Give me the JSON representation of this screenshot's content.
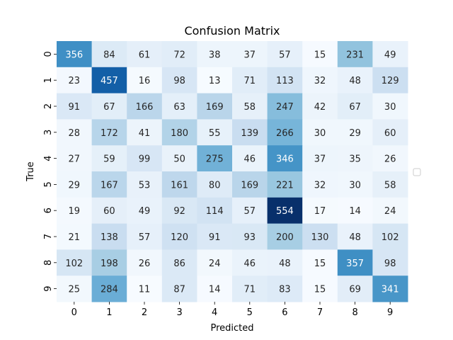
{
  "chart_data": {
    "type": "heatmap",
    "title": "Confusion Matrix",
    "xlabel": "Predicted",
    "ylabel": "True",
    "x_categories": [
      "0",
      "1",
      "2",
      "3",
      "4",
      "5",
      "6",
      "7",
      "8",
      "9"
    ],
    "y_categories": [
      "0",
      "1",
      "2",
      "3",
      "4",
      "5",
      "6",
      "7",
      "8",
      "9"
    ],
    "values": [
      [
        356,
        84,
        61,
        72,
        38,
        37,
        57,
        15,
        231,
        49
      ],
      [
        23,
        457,
        16,
        98,
        13,
        71,
        113,
        32,
        48,
        129
      ],
      [
        91,
        67,
        166,
        63,
        169,
        58,
        247,
        42,
        67,
        30
      ],
      [
        28,
        172,
        41,
        180,
        55,
        139,
        266,
        30,
        29,
        60
      ],
      [
        27,
        59,
        99,
        50,
        275,
        46,
        346,
        37,
        35,
        26
      ],
      [
        29,
        167,
        53,
        161,
        80,
        169,
        221,
        32,
        30,
        58
      ],
      [
        19,
        60,
        49,
        92,
        114,
        57,
        554,
        17,
        14,
        24
      ],
      [
        21,
        138,
        57,
        120,
        91,
        93,
        200,
        130,
        48,
        102
      ],
      [
        102,
        198,
        26,
        86,
        24,
        46,
        48,
        15,
        357,
        98
      ],
      [
        25,
        284,
        11,
        87,
        14,
        71,
        83,
        15,
        69,
        341
      ]
    ],
    "colormap": "Blues",
    "vmin": 11,
    "vmax": 554,
    "colorbar": false,
    "legend": "right"
  }
}
